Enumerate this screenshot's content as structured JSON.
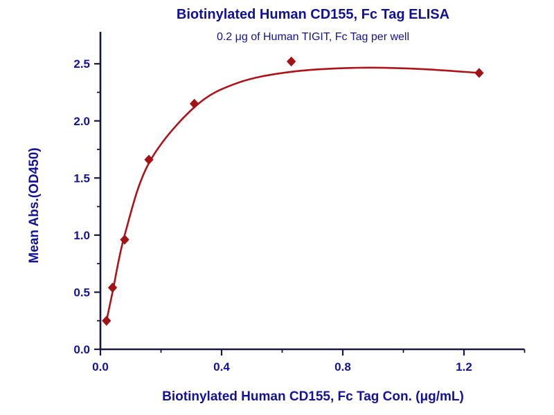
{
  "chart_data": {
    "type": "scatter",
    "title": "Biotinylated Human CD155, Fc Tag ELISA",
    "subtitle": "0.2 μg of Human TIGIT, Fc Tag per well",
    "xlabel": "Biotinylated Human CD155, Fc Tag Con. (μg/mL)",
    "ylabel": "Mean Abs.(OD450)",
    "x": [
      0.02,
      0.04,
      0.08,
      0.16,
      0.31,
      0.63,
      1.25
    ],
    "y": [
      0.25,
      0.54,
      0.96,
      1.66,
      2.15,
      2.52,
      2.42
    ],
    "fit_curve": {
      "type": "4PL saturation fit",
      "x": [
        0.02,
        0.04,
        0.08,
        0.16,
        0.31,
        0.45,
        0.63,
        0.85,
        1.05,
        1.25
      ],
      "y": [
        0.25,
        0.5,
        1.0,
        1.63,
        2.12,
        2.33,
        2.43,
        2.465,
        2.455,
        2.42
      ]
    },
    "xlim": [
      0,
      1.4
    ],
    "ylim": [
      0,
      2.78
    ],
    "x_ticks": [
      0.0,
      0.4,
      0.8,
      1.2
    ],
    "x_minor_ticks": [
      0.2,
      0.6,
      1.0,
      1.4
    ],
    "y_ticks": [
      0.0,
      0.5,
      1.0,
      1.5,
      2.0,
      2.5
    ],
    "y_minor_ticks": [
      0.25,
      0.75,
      1.25,
      1.75,
      2.25
    ],
    "tick_decimals": 1,
    "grid": "off",
    "legend": "none",
    "marker": "diamond",
    "colors": {
      "title": "#10109A",
      "axis_text": "#12129A",
      "axis_line": "#16163E",
      "series": "#A31216",
      "curve": "#AE1117"
    }
  }
}
